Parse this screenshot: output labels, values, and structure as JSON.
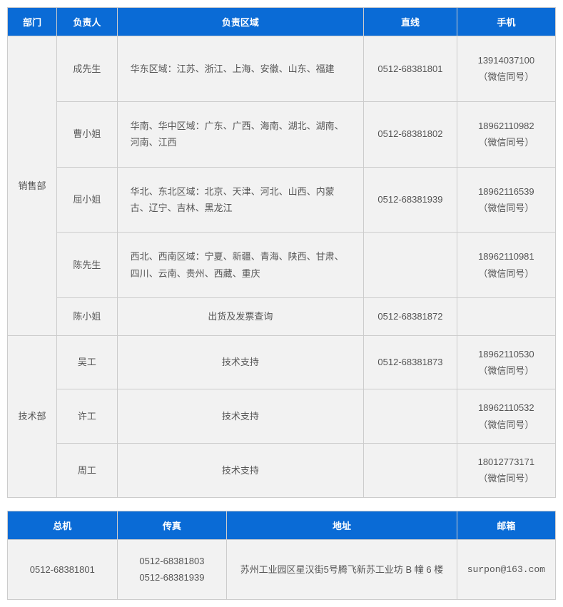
{
  "table1": {
    "headers": [
      "部门",
      "负责人",
      "负责区域",
      "直线",
      "手机"
    ],
    "col_widths": [
      "9%",
      "11%",
      "45%",
      "17%",
      "18%"
    ],
    "header_bg": "#0a6bd6",
    "header_color": "#ffffff",
    "cell_bg": "#f2f2f2",
    "border_color": "#cccccc",
    "depts": [
      {
        "name": "销售部",
        "rows": [
          {
            "person": "成先生",
            "region": "华东区域：江苏、浙江、上海、安徽、山东、福建",
            "tel": "0512-68381801",
            "mobile": "13914037100（微信同号）"
          },
          {
            "person": "曹小姐",
            "region": "华南、华中区域：广东、广西、海南、湖北、湖南、河南、江西",
            "tel": "0512-68381802",
            "mobile": "18962110982（微信同号）"
          },
          {
            "person": "屈小姐",
            "region": "华北、东北区域：北京、天津、河北、山西、内蒙古、辽宁、吉林、黑龙江",
            "tel": "0512-68381939",
            "mobile": "18962116539（微信同号）"
          },
          {
            "person": "陈先生",
            "region": "西北、西南区域：宁夏、新疆、青海、陕西、甘肃、四川、云南、贵州、西藏、重庆",
            "tel": "",
            "mobile": "18962110981（微信同号）"
          },
          {
            "person": "陈小姐",
            "region": "出货及发票查询",
            "region_center": true,
            "tel": "0512-68381872",
            "mobile": ""
          }
        ]
      },
      {
        "name": "技术部",
        "rows": [
          {
            "person": "吴工",
            "region": "技术支持",
            "region_center": true,
            "tel": "0512-68381873",
            "mobile": "18962110530（微信同号）"
          },
          {
            "person": "许工",
            "region": "技术支持",
            "region_center": true,
            "tel": "",
            "mobile": "18962110532（微信同号）"
          },
          {
            "person": "周工",
            "region": "技术支持",
            "region_center": true,
            "tel": "",
            "mobile": "18012773171（微信同号）"
          }
        ]
      }
    ]
  },
  "table2": {
    "headers": [
      "总机",
      "传真",
      "地址",
      "邮箱"
    ],
    "col_widths": [
      "20%",
      "20%",
      "42%",
      "18%"
    ],
    "row": {
      "main_tel": "0512-68381801",
      "fax": "0512-68381803\n0512-68381939",
      "address": "苏州工业园区星汉街5号腾飞新苏工业坊 B 幢 6 楼",
      "email": "surpon@163.com"
    }
  }
}
